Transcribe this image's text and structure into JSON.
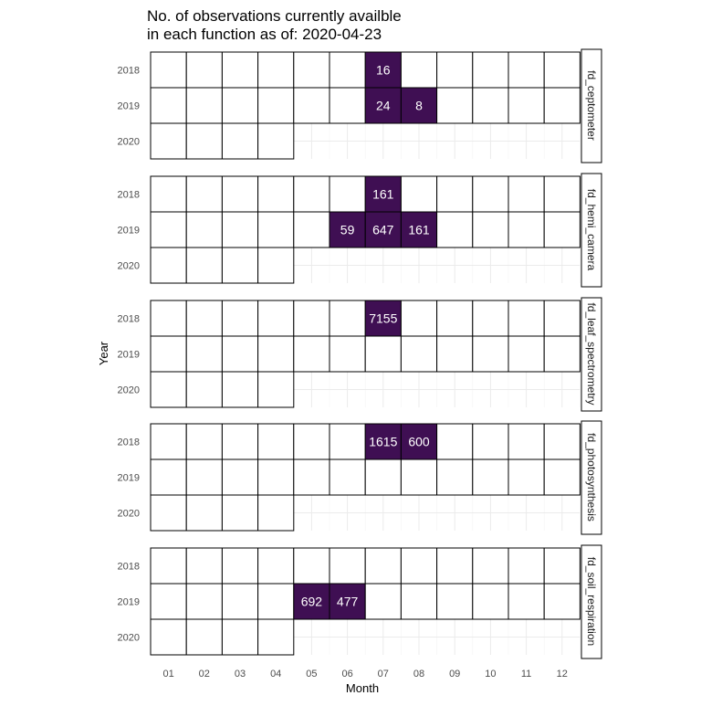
{
  "chart_data": {
    "type": "heatmap",
    "title_lines": [
      "No. of observations currently availble",
      "in each function as of: 2020-04-23"
    ],
    "xlabel": "Month",
    "ylabel": "Year",
    "months": [
      "01",
      "02",
      "03",
      "04",
      "05",
      "06",
      "07",
      "08",
      "09",
      "10",
      "11",
      "12"
    ],
    "years": [
      "2018",
      "2019",
      "2020"
    ],
    "available_months_by_year": {
      "2018": 12,
      "2019": 12,
      "2020": 4
    },
    "fill_color": "#3f0f53",
    "empty_color": "#ffffff",
    "text_color": "#ffffff",
    "facets": [
      {
        "name": "fd_ceptometer",
        "cells": [
          {
            "year": "2018",
            "month": "07",
            "value": 16
          },
          {
            "year": "2019",
            "month": "07",
            "value": 24
          },
          {
            "year": "2019",
            "month": "08",
            "value": 8
          }
        ]
      },
      {
        "name": "fd_hemi_camera",
        "cells": [
          {
            "year": "2018",
            "month": "07",
            "value": 161
          },
          {
            "year": "2019",
            "month": "06",
            "value": 59
          },
          {
            "year": "2019",
            "month": "07",
            "value": 647
          },
          {
            "year": "2019",
            "month": "08",
            "value": 161
          }
        ]
      },
      {
        "name": "fd_leaf_spectrometry",
        "cells": [
          {
            "year": "2018",
            "month": "07",
            "value": 7155
          }
        ]
      },
      {
        "name": "fd_photosynthesis",
        "cells": [
          {
            "year": "2018",
            "month": "07",
            "value": 1615
          },
          {
            "year": "2018",
            "month": "08",
            "value": 600
          }
        ]
      },
      {
        "name": "fd_soil_respiration",
        "cells": [
          {
            "year": "2019",
            "month": "05",
            "value": 692
          },
          {
            "year": "2019",
            "month": "06",
            "value": 477
          }
        ]
      }
    ]
  }
}
